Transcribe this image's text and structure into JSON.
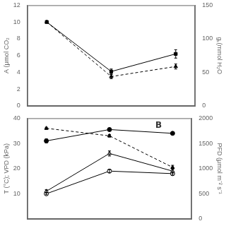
{
  "chart_data": [
    {
      "type": "line",
      "x": [
        1,
        2,
        3
      ],
      "xlim": [
        0.7,
        3.3
      ],
      "xticks": [],
      "ylabel": "A (μmol CO₂",
      "y2label": "gₛ(mmol H₂O",
      "ylim": [
        0,
        12
      ],
      "yticks": [
        0,
        2,
        4,
        6,
        8,
        10,
        12
      ],
      "y2lim": [
        0,
        150
      ],
      "y2ticks": [
        0,
        50,
        100,
        150
      ],
      "grid": false,
      "tick_labels": "y",
      "series": [
        {
          "color": "black",
          "marker": "square",
          "line_style": "solid",
          "axis": "y",
          "values": [
            10.0,
            4.1,
            6.2
          ],
          "yerr": [
            0.05,
            0.3,
            0.5
          ]
        },
        {
          "color": "black",
          "marker": "triangle",
          "line_style": "dashed",
          "axis": "y",
          "values": [
            10.0,
            3.5,
            4.7
          ],
          "yerr": [
            0.05,
            0.25,
            0.3
          ]
        }
      ]
    },
    {
      "type": "line",
      "x": [
        1,
        2,
        3
      ],
      "xlim": [
        0.7,
        3.3
      ],
      "xticks": [],
      "ylabel": "T (°C); VPD (kPa)",
      "y2label": "PFD (μmol m⁻² s⁻¹",
      "ylim": [
        0,
        40
      ],
      "yticks": [
        10,
        20,
        30,
        40
      ],
      "y2lim": [
        0,
        2000
      ],
      "y2ticks": [
        0,
        500,
        1000,
        1500,
        2000
      ],
      "grid": false,
      "tick_labels": "y",
      "annotations": [
        "B"
      ],
      "series": [
        {
          "color": "black",
          "marker": "circle",
          "line_style": "solid",
          "axis": "y",
          "values": [
            31.0,
            35.5,
            34.0
          ],
          "yerr": [
            0.8,
            0.3,
            0.3
          ]
        },
        {
          "color": "black",
          "marker": "triangle",
          "line_style": "dashed",
          "axis": "y",
          "values": [
            36.0,
            33.0,
            20.5
          ],
          "yerr": [
            0.4,
            0.5,
            0.8
          ]
        },
        {
          "color": "black",
          "marker": "open_triangle",
          "line_style": "solid",
          "axis": "y2",
          "values": [
            550,
            1300,
            950
          ],
          "yerr": [
            30,
            50,
            40
          ]
        },
        {
          "color": "black",
          "marker": "open_circle",
          "line_style": "solid",
          "axis": "y2",
          "values": [
            500,
            950,
            900
          ],
          "yerr": [
            20,
            30,
            30
          ]
        }
      ]
    }
  ]
}
